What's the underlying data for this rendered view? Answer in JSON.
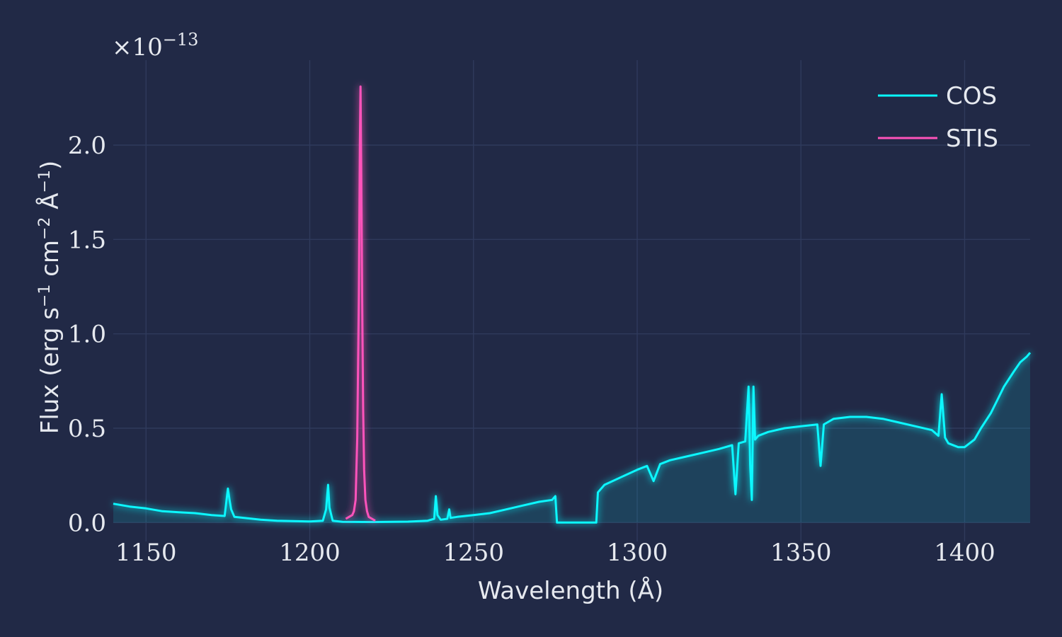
{
  "chart_data": {
    "type": "line",
    "xlabel": "Wavelength (Å)",
    "ylabel": "Flux (erg s",
    "ylabel_parts": [
      "Flux (erg s",
      "−1",
      " cm",
      "−2",
      " Å",
      "−1",
      ")"
    ],
    "y_multiplier": "×10",
    "y_multiplier_exp": "−13",
    "xlim": [
      1140,
      1420
    ],
    "ylim": [
      -0.1,
      2.45
    ],
    "xticks": [
      1150,
      1200,
      1250,
      1300,
      1350,
      1400
    ],
    "xtick_labels": [
      "1150",
      "1200",
      "1250",
      "1300",
      "1350",
      "1400"
    ],
    "yticks": [
      0.0,
      0.5,
      1.0,
      1.5,
      2.0
    ],
    "ytick_labels": [
      "0.0",
      "0.5",
      "1.0",
      "1.5",
      "2.0"
    ],
    "grid": true,
    "legend_position": "top-right",
    "series": [
      {
        "name": "COS",
        "color": "#08F7FE",
        "fill_under": true,
        "x": [
          1140,
          1145,
          1150,
          1155,
          1160,
          1165,
          1170,
          1174,
          1175,
          1175.5,
          1176,
          1177,
          1180,
          1185,
          1190,
          1195,
          1200,
          1204,
          1205,
          1205.6,
          1206,
          1207,
          1210,
          1220,
          1230,
          1236,
          1238,
          1238.5,
          1239,
          1240,
          1242,
          1242.6,
          1243,
          1245,
          1250,
          1255,
          1260,
          1265,
          1270,
          1274,
          1275,
          1275.5,
          1287.5,
          1288,
          1290,
          1295,
          1300,
          1303,
          1305,
          1307,
          1310,
          1315,
          1320,
          1325,
          1329,
          1330,
          1331,
          1333,
          1334,
          1334.5,
          1335,
          1335.5,
          1336,
          1337,
          1340,
          1345,
          1350,
          1355,
          1356,
          1357,
          1358,
          1360,
          1365,
          1370,
          1375,
          1380,
          1385,
          1390,
          1392,
          1393,
          1394,
          1395,
          1398,
          1400,
          1403,
          1405,
          1408,
          1410,
          1412,
          1415,
          1417,
          1419,
          1420
        ],
        "y": [
          0.1,
          0.085,
          0.075,
          0.06,
          0.055,
          0.05,
          0.04,
          0.035,
          0.18,
          0.12,
          0.07,
          0.03,
          0.025,
          0.015,
          0.01,
          0.008,
          0.006,
          0.01,
          0.07,
          0.2,
          0.08,
          0.01,
          0.004,
          0.003,
          0.005,
          0.01,
          0.02,
          0.14,
          0.04,
          0.015,
          0.02,
          0.07,
          0.025,
          0.03,
          0.04,
          0.05,
          0.07,
          0.09,
          0.11,
          0.12,
          0.14,
          0.0,
          0.0,
          0.16,
          0.2,
          0.24,
          0.28,
          0.3,
          0.22,
          0.31,
          0.33,
          0.35,
          0.37,
          0.39,
          0.41,
          0.15,
          0.42,
          0.43,
          0.72,
          0.3,
          0.12,
          0.72,
          0.44,
          0.46,
          0.48,
          0.5,
          0.51,
          0.52,
          0.3,
          0.52,
          0.53,
          0.55,
          0.56,
          0.56,
          0.55,
          0.53,
          0.51,
          0.49,
          0.46,
          0.68,
          0.45,
          0.42,
          0.4,
          0.4,
          0.44,
          0.5,
          0.58,
          0.65,
          0.72,
          0.8,
          0.85,
          0.88,
          0.9
        ]
      },
      {
        "name": "STIS",
        "color": "#FE53BB",
        "fill_under": false,
        "x": [
          1211,
          1212,
          1213,
          1213.5,
          1214,
          1214.5,
          1215,
          1215.3,
          1215.5,
          1215.7,
          1216,
          1216.3,
          1216.6,
          1217,
          1217.5,
          1218,
          1219,
          1220
        ],
        "y": [
          0.02,
          0.03,
          0.04,
          0.06,
          0.12,
          0.45,
          1.2,
          2.0,
          2.31,
          1.9,
          1.2,
          0.6,
          0.28,
          0.12,
          0.06,
          0.03,
          0.02,
          0.01
        ]
      }
    ]
  }
}
